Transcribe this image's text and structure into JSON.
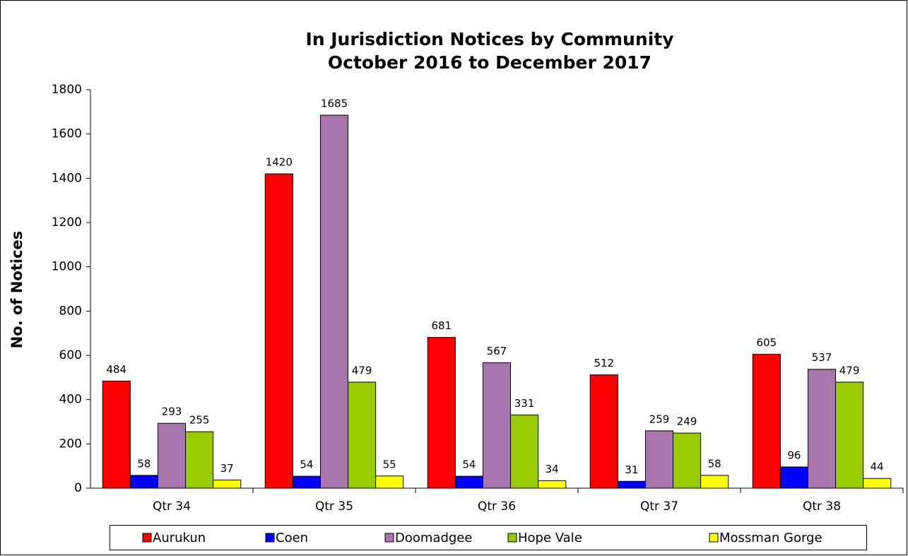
{
  "chart_data": {
    "type": "bar",
    "title": "In Jurisdiction Notices by Community",
    "subtitle": "October 2016 to December 2017",
    "y_label": "No. of Notices",
    "categories": [
      "Qtr 34",
      "Qtr 35",
      "Qtr 36",
      "Qtr 37",
      "Qtr 38"
    ],
    "series": [
      {
        "name": "Aurukun",
        "color": "#ff0000",
        "values": [
          484,
          1420,
          681,
          512,
          605
        ]
      },
      {
        "name": "Coen",
        "color": "#0000ff",
        "values": [
          58,
          54,
          54,
          31,
          96
        ]
      },
      {
        "name": "Doomadgee",
        "color": "#a875ad",
        "values": [
          293,
          1685,
          567,
          259,
          537
        ]
      },
      {
        "name": "Hope Vale",
        "color": "#99cc00",
        "values": [
          255,
          479,
          331,
          249,
          479
        ]
      },
      {
        "name": "Mossman Gorge",
        "color": "#ffff00",
        "values": [
          37,
          55,
          34,
          58,
          44
        ]
      }
    ],
    "ylim": [
      0,
      1800
    ],
    "yticks": [
      0,
      200,
      400,
      600,
      800,
      1000,
      1200,
      1400,
      1600,
      1800
    ],
    "grid": false,
    "legend": "bottom"
  }
}
